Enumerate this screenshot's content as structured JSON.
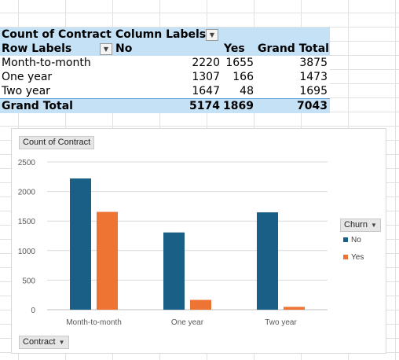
{
  "pivot": {
    "header1": {
      "value_field": "Count of Contract",
      "column_labels": "Column Labels"
    },
    "header2": {
      "row_labels": "Row Labels",
      "col_no": "No",
      "col_yes": "Yes",
      "col_total": "Grand Total"
    },
    "rows": [
      {
        "label": "Month-to-month",
        "no": "2220",
        "yes": "1655",
        "total": "3875"
      },
      {
        "label": "One year",
        "no": "1307",
        "yes": "166",
        "total": "1473"
      },
      {
        "label": "Two year",
        "no": "1647",
        "yes": "48",
        "total": "1695"
      }
    ],
    "grand_total": {
      "label": "Grand Total",
      "no": "5174",
      "yes": "1869",
      "total": "7043"
    }
  },
  "chart": {
    "value_button": "Count of Contract",
    "legend_button": "Churn",
    "axis_button": "Contract"
  },
  "colors": {
    "No": "#1a5f86",
    "Yes": "#ed7433",
    "header_fill": "#c5e1f5"
  },
  "chart_data": {
    "type": "bar",
    "categories": [
      "Month-to-month",
      "One year",
      "Two year"
    ],
    "series": [
      {
        "name": "No",
        "values": [
          2220,
          1307,
          1647
        ]
      },
      {
        "name": "Yes",
        "values": [
          1655,
          166,
          48
        ]
      }
    ],
    "ylim": [
      0,
      2500
    ],
    "yticks": [
      0,
      500,
      1000,
      1500,
      2000,
      2500
    ],
    "grid": true,
    "legend": "right"
  }
}
